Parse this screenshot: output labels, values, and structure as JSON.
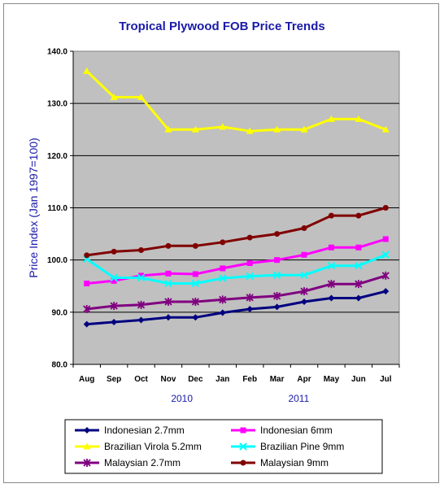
{
  "chart_data": {
    "type": "line",
    "title": "Tropical Plywood FOB Price Trends",
    "ylabel": "Price Index (Jan 1997=100)",
    "xlabel": "",
    "ylim": [
      80,
      140
    ],
    "yticks": [
      "80.0",
      "90.0",
      "100.0",
      "110.0",
      "120.0",
      "130.0",
      "140.0"
    ],
    "categories": [
      "Aug",
      "Sep",
      "Oct",
      "Nov",
      "Dec",
      "Jan",
      "Feb",
      "Mar",
      "Apr",
      "May",
      "Jun",
      "Jul"
    ],
    "year_labels": [
      {
        "label": "2010",
        "category_index": 3.5
      },
      {
        "label": "2011",
        "category_index": 7.8
      }
    ],
    "grid": true,
    "legend_position": "bottom",
    "plot_background": "#c0c0c0",
    "series": [
      {
        "name": "Indonesian 2.7mm",
        "color": "#000080",
        "marker": "diamond",
        "values": [
          87.7,
          88.1,
          88.5,
          89.0,
          89.0,
          89.9,
          90.6,
          91.0,
          92.0,
          92.7,
          92.7,
          94.0
        ]
      },
      {
        "name": "Indonesian 6mm",
        "color": "#ff00ff",
        "marker": "square",
        "values": [
          95.5,
          96.0,
          97.0,
          97.4,
          97.3,
          98.4,
          99.4,
          100.0,
          101.0,
          102.4,
          102.4,
          104.0
        ]
      },
      {
        "name": "Brazilian Virola 5.2mm",
        "color": "#ffff00",
        "marker": "triangle",
        "values": [
          136.2,
          131.2,
          131.2,
          125.0,
          125.0,
          125.5,
          124.7,
          125.0,
          125.0,
          127.0,
          127.0,
          125.0
        ]
      },
      {
        "name": "Brazilian Pine 9mm",
        "color": "#00ffff",
        "marker": "x",
        "values": [
          100.2,
          96.6,
          96.6,
          95.5,
          95.5,
          96.5,
          96.9,
          97.1,
          97.1,
          98.9,
          98.9,
          101.0
        ]
      },
      {
        "name": "Malaysian 2.7mm",
        "color": "#800080",
        "marker": "star",
        "values": [
          90.6,
          91.2,
          91.4,
          92.0,
          92.0,
          92.4,
          92.8,
          93.1,
          94.0,
          95.4,
          95.4,
          97.0
        ]
      },
      {
        "name": "Malaysian 9mm",
        "color": "#800000",
        "marker": "circle",
        "values": [
          100.9,
          101.6,
          101.9,
          102.7,
          102.7,
          103.4,
          104.3,
          105.0,
          106.1,
          108.5,
          108.5,
          110.0
        ]
      }
    ]
  }
}
